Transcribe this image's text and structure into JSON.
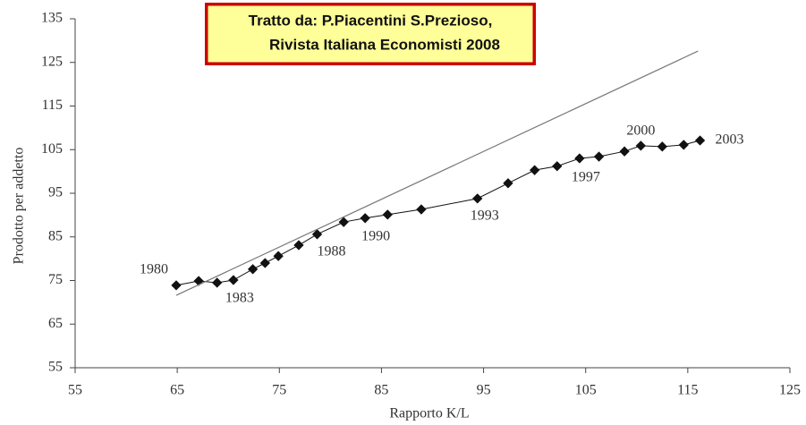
{
  "chart_data": {
    "type": "scatter_line",
    "xlabel": "Rapporto K/L",
    "ylabel": "Prodotto per addetto",
    "annotation": [
      "Tratto da: P.Piacentini S.Prezioso,",
      "Rivista Italiana Economisti 2008"
    ],
    "xlim": [
      55,
      125
    ],
    "xticks": [
      55,
      65,
      75,
      85,
      95,
      105,
      115,
      125
    ],
    "ylim": [
      55,
      135
    ],
    "yticks": [
      55,
      65,
      75,
      85,
      95,
      105,
      115,
      125,
      135
    ],
    "series": [
      {
        "color": "#111111",
        "x": [
          64.9,
          67.1,
          68.9,
          70.5,
          72.4,
          73.6,
          74.9,
          76.9,
          78.7,
          81.3,
          83.4,
          85.6,
          88.9,
          94.4,
          97.4,
          100.0,
          102.2,
          104.4,
          106.3,
          108.8,
          110.4,
          112.5,
          114.6,
          116.2
        ],
        "values": [
          73.9,
          74.9,
          74.5,
          75.1,
          77.6,
          79.0,
          80.6,
          83.1,
          85.6,
          88.4,
          89.3,
          90.1,
          91.3,
          93.8,
          97.3,
          100.3,
          101.2,
          103.0,
          103.4,
          104.6,
          105.9,
          105.7,
          106.1,
          107.1
        ],
        "point_labels": [
          "1980",
          null,
          null,
          "1983",
          null,
          null,
          null,
          null,
          "1988",
          null,
          "1990",
          null,
          null,
          "1993",
          null,
          null,
          null,
          "1997",
          null,
          null,
          "2000",
          null,
          null,
          "2003"
        ]
      },
      {
        "color": "#777777",
        "x": [
          64.9,
          116.0
        ],
        "values": [
          71.6,
          127.6
        ]
      }
    ]
  }
}
